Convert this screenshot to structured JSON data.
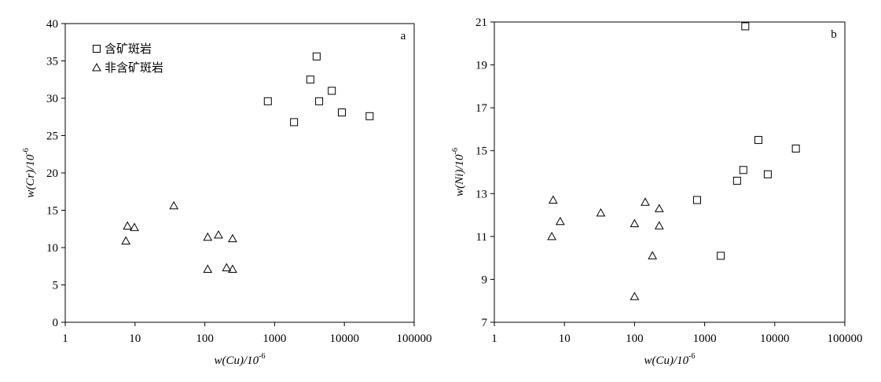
{
  "chart_data": [
    {
      "type": "scatter",
      "panel_label": "a",
      "xlabel": "w(Cu)/10",
      "xlabel_exponent": "-6",
      "ylabel": "w(Cr)/10",
      "ylabel_exponent": "-6",
      "xscale": "log",
      "xlim": [
        1,
        100000
      ],
      "xticks": [
        1,
        10,
        100,
        1000,
        10000,
        100000
      ],
      "ylim": [
        0,
        40
      ],
      "yticks": [
        0,
        5,
        10,
        15,
        20,
        25,
        30,
        35,
        40
      ],
      "legend": "upper left",
      "series": [
        {
          "name": "含矿斑岩",
          "marker": "square",
          "color": "#000000",
          "x": [
            800,
            1900,
            3250,
            4000,
            4350,
            6600,
            9200,
            23000
          ],
          "values": [
            29.6,
            26.8,
            32.5,
            35.6,
            29.6,
            31.0,
            28.1,
            27.6
          ]
        },
        {
          "name": "非含矿斑岩",
          "marker": "triangle",
          "color": "#000000",
          "x": [
            7.4,
            7.8,
            9.8,
            36,
            110,
            110,
            157,
            205,
            250,
            250
          ],
          "values": [
            10.9,
            12.9,
            12.7,
            15.6,
            11.4,
            7.1,
            11.7,
            7.3,
            11.2,
            7.1
          ]
        }
      ]
    },
    {
      "type": "scatter",
      "panel_label": "b",
      "xlabel": "w(Cu)/10",
      "xlabel_exponent": "-6",
      "ylabel": "w(Ni)/10",
      "ylabel_exponent": "-6",
      "xscale": "log",
      "xlim": [
        1,
        100000
      ],
      "xticks": [
        1,
        10,
        100,
        1000,
        10000,
        100000
      ],
      "ylim": [
        7,
        21
      ],
      "yticks": [
        7,
        9,
        11,
        13,
        15,
        17,
        19,
        21
      ],
      "legend": "none",
      "series": [
        {
          "marker": "square",
          "color": "#000000",
          "x": [
            780,
            1700,
            2900,
            3560,
            3800,
            5850,
            7950,
            20000
          ],
          "values": [
            12.7,
            10.1,
            13.6,
            14.1,
            20.8,
            15.5,
            13.9,
            15.1
          ]
        },
        {
          "marker": "triangle",
          "color": "#000000",
          "x": [
            6.6,
            6.9,
            8.7,
            33,
            100,
            100,
            142,
            180,
            225,
            225
          ],
          "values": [
            11.0,
            12.7,
            11.7,
            12.1,
            11.6,
            8.2,
            12.6,
            10.1,
            12.3,
            11.5
          ]
        }
      ]
    }
  ]
}
